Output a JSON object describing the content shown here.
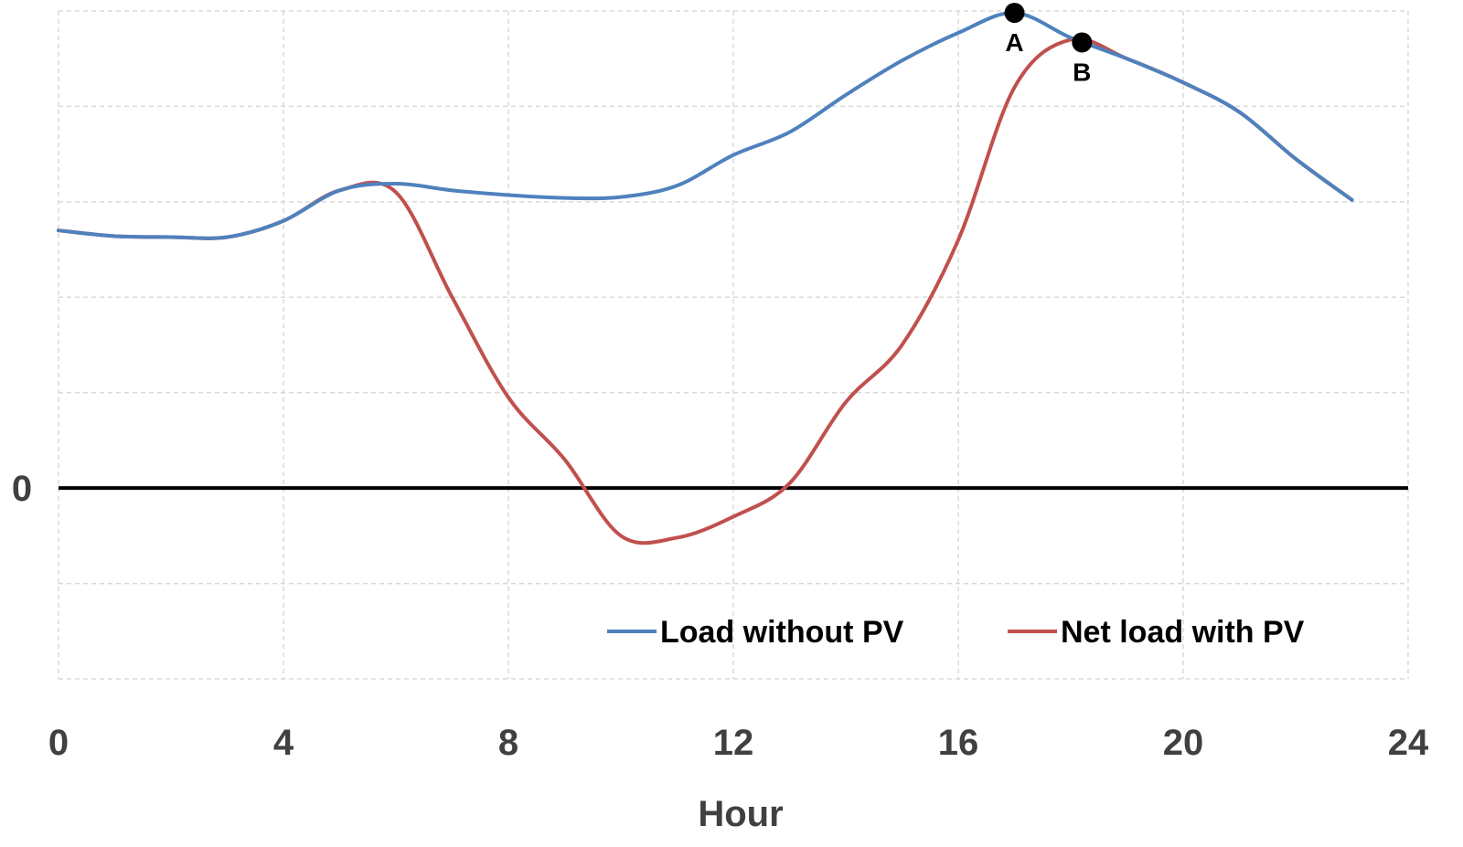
{
  "chart_data": {
    "type": "line",
    "title": "",
    "xlabel": "Hour",
    "ylabel": "",
    "xlim": [
      0,
      24
    ],
    "ylim": [
      -2,
      5
    ],
    "x_ticks": [
      "0",
      "4",
      "8",
      "12",
      "16",
      "20",
      "24"
    ],
    "x_tick_values": [
      0,
      4,
      8,
      12,
      16,
      20,
      24
    ],
    "y_tick_labels": [
      {
        "value": 0,
        "label": "0"
      }
    ],
    "y_gridlines": [
      -2,
      -1,
      0,
      1,
      2,
      3,
      4,
      5
    ],
    "grid": true,
    "legend_position": "bottom-right",
    "series": [
      {
        "name": "Load without PV",
        "color": "#4f81bd",
        "x": [
          0,
          1,
          2,
          3,
          4,
          5,
          6,
          7,
          8,
          9,
          10,
          11,
          12,
          13,
          14,
          15,
          16,
          17,
          18,
          19,
          20,
          21,
          22,
          23
        ],
        "y": [
          2.7,
          2.64,
          2.63,
          2.63,
          2.8,
          3.12,
          3.19,
          3.12,
          3.07,
          3.04,
          3.05,
          3.17,
          3.49,
          3.73,
          4.12,
          4.48,
          4.77,
          4.98,
          4.72,
          4.5,
          4.25,
          3.94,
          3.45,
          3.02
        ]
      },
      {
        "name": "Net load with PV",
        "color": "#c0504d",
        "x": [
          0,
          1,
          2,
          3,
          4,
          5,
          6,
          7,
          8,
          9,
          10,
          11,
          12,
          13,
          14,
          15,
          16,
          17,
          18,
          19,
          20,
          21,
          22,
          23
        ],
        "y": [
          2.7,
          2.64,
          2.63,
          2.63,
          2.8,
          3.12,
          3.1,
          2.0,
          0.95,
          0.3,
          -0.5,
          -0.52,
          -0.3,
          0.05,
          0.9,
          1.5,
          2.6,
          4.2,
          4.7,
          4.5,
          4.25,
          3.94,
          3.45,
          3.02
        ]
      }
    ],
    "annotations": [
      {
        "label": "A",
        "x": 17,
        "y": 4.98
      },
      {
        "label": "B",
        "x": 18.2,
        "y": 4.67
      }
    ]
  }
}
